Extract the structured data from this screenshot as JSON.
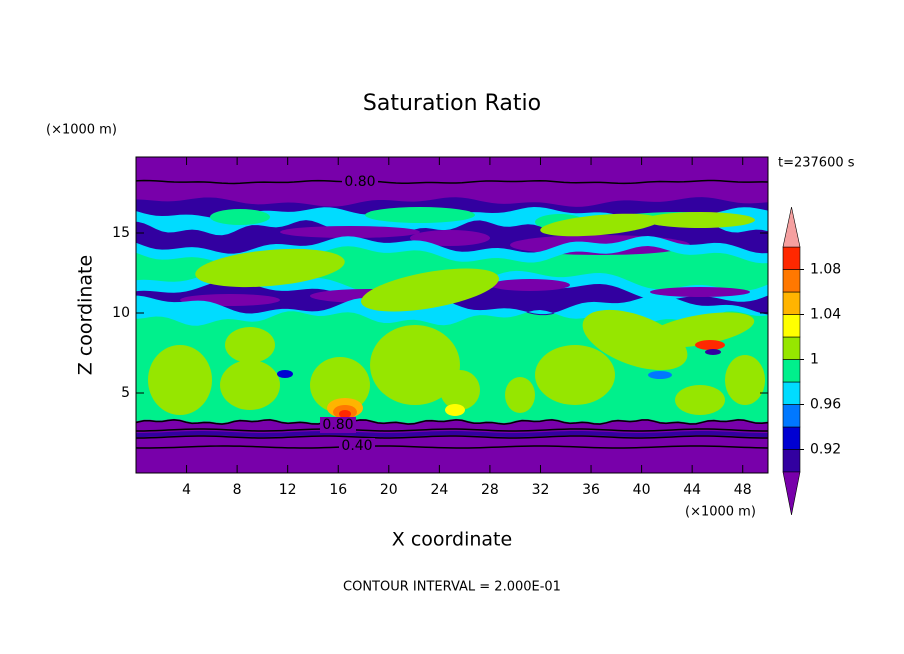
{
  "chart_data": {
    "type": "contour",
    "title": "Saturation Ratio",
    "x_label": "X coordinate",
    "y_label": "Z coordinate",
    "x_unit": "(×1000 m)",
    "y_unit": "(×1000 m)",
    "time_label": "t=237600 s",
    "footer": "CONTOUR INTERVAL = 2.000E-01",
    "xlim": [
      0,
      50
    ],
    "xticks": [
      4,
      8,
      12,
      16,
      20,
      24,
      28,
      32,
      36,
      40,
      44,
      48
    ],
    "ylim": [
      0,
      19.75
    ],
    "yticks": [
      5,
      10,
      15
    ],
    "levels": [
      0.9,
      0.92,
      0.94,
      0.96,
      0.98,
      1,
      1.02,
      1.04,
      1.06,
      1.08,
      1.1
    ],
    "colors": [
      "#7800aa",
      "#3200a0",
      "#0000d2",
      "#0078ff",
      "#00dcff",
      "#00f08c",
      "#96e600",
      "#ffff00",
      "#ffb400",
      "#ff7800",
      "#ff2800",
      "#f5a0a0"
    ],
    "colorbar_ticks": [
      0.92,
      0.96,
      1,
      1.04,
      1.08
    ],
    "contour_labels": [
      {
        "value": 0.8,
        "label": "0.80"
      },
      {
        "value": 0.8,
        "label": "0.80"
      },
      {
        "value": 0.4,
        "label": "0.40"
      }
    ]
  }
}
